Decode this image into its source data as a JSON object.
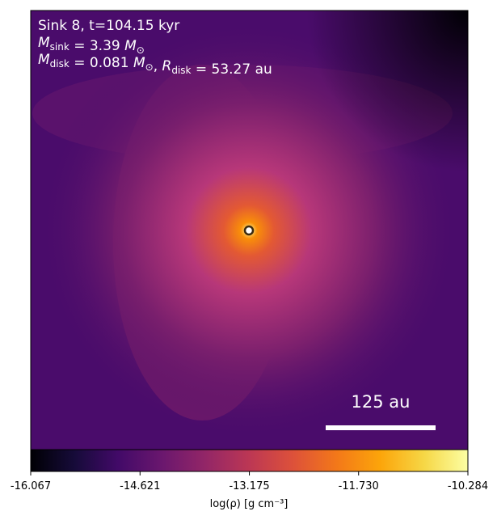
{
  "chart_data": {
    "type": "image",
    "annotations": [
      [
        {
          "t": "Sink 8, t=104.15 kyr"
        }
      ],
      [
        {
          "t": "M"
        },
        {
          "sub": "sink"
        },
        {
          "t": " = 3.39 "
        },
        {
          "t": "M"
        },
        {
          "sub": "⊙"
        }
      ],
      [
        {
          "t": "M"
        },
        {
          "sub": "disk"
        },
        {
          "t": " = 0.081 "
        },
        {
          "t": "M"
        },
        {
          "sub": "⊙"
        },
        {
          "t": ", "
        },
        {
          "t": "R"
        },
        {
          "sub": "disk"
        },
        {
          "t": " = 53.27 au"
        }
      ]
    ],
    "scalebar_label": "125 au",
    "colormap": "inferno",
    "clim": [
      -16.067,
      -10.284
    ],
    "cticks": [
      -16.067,
      -14.621,
      -13.175,
      {
        "value": -11.73,
        "label": "-11.730"
      },
      -10.284
    ],
    "colorbar_label": "log(ρ) [g cm⁻³]"
  }
}
